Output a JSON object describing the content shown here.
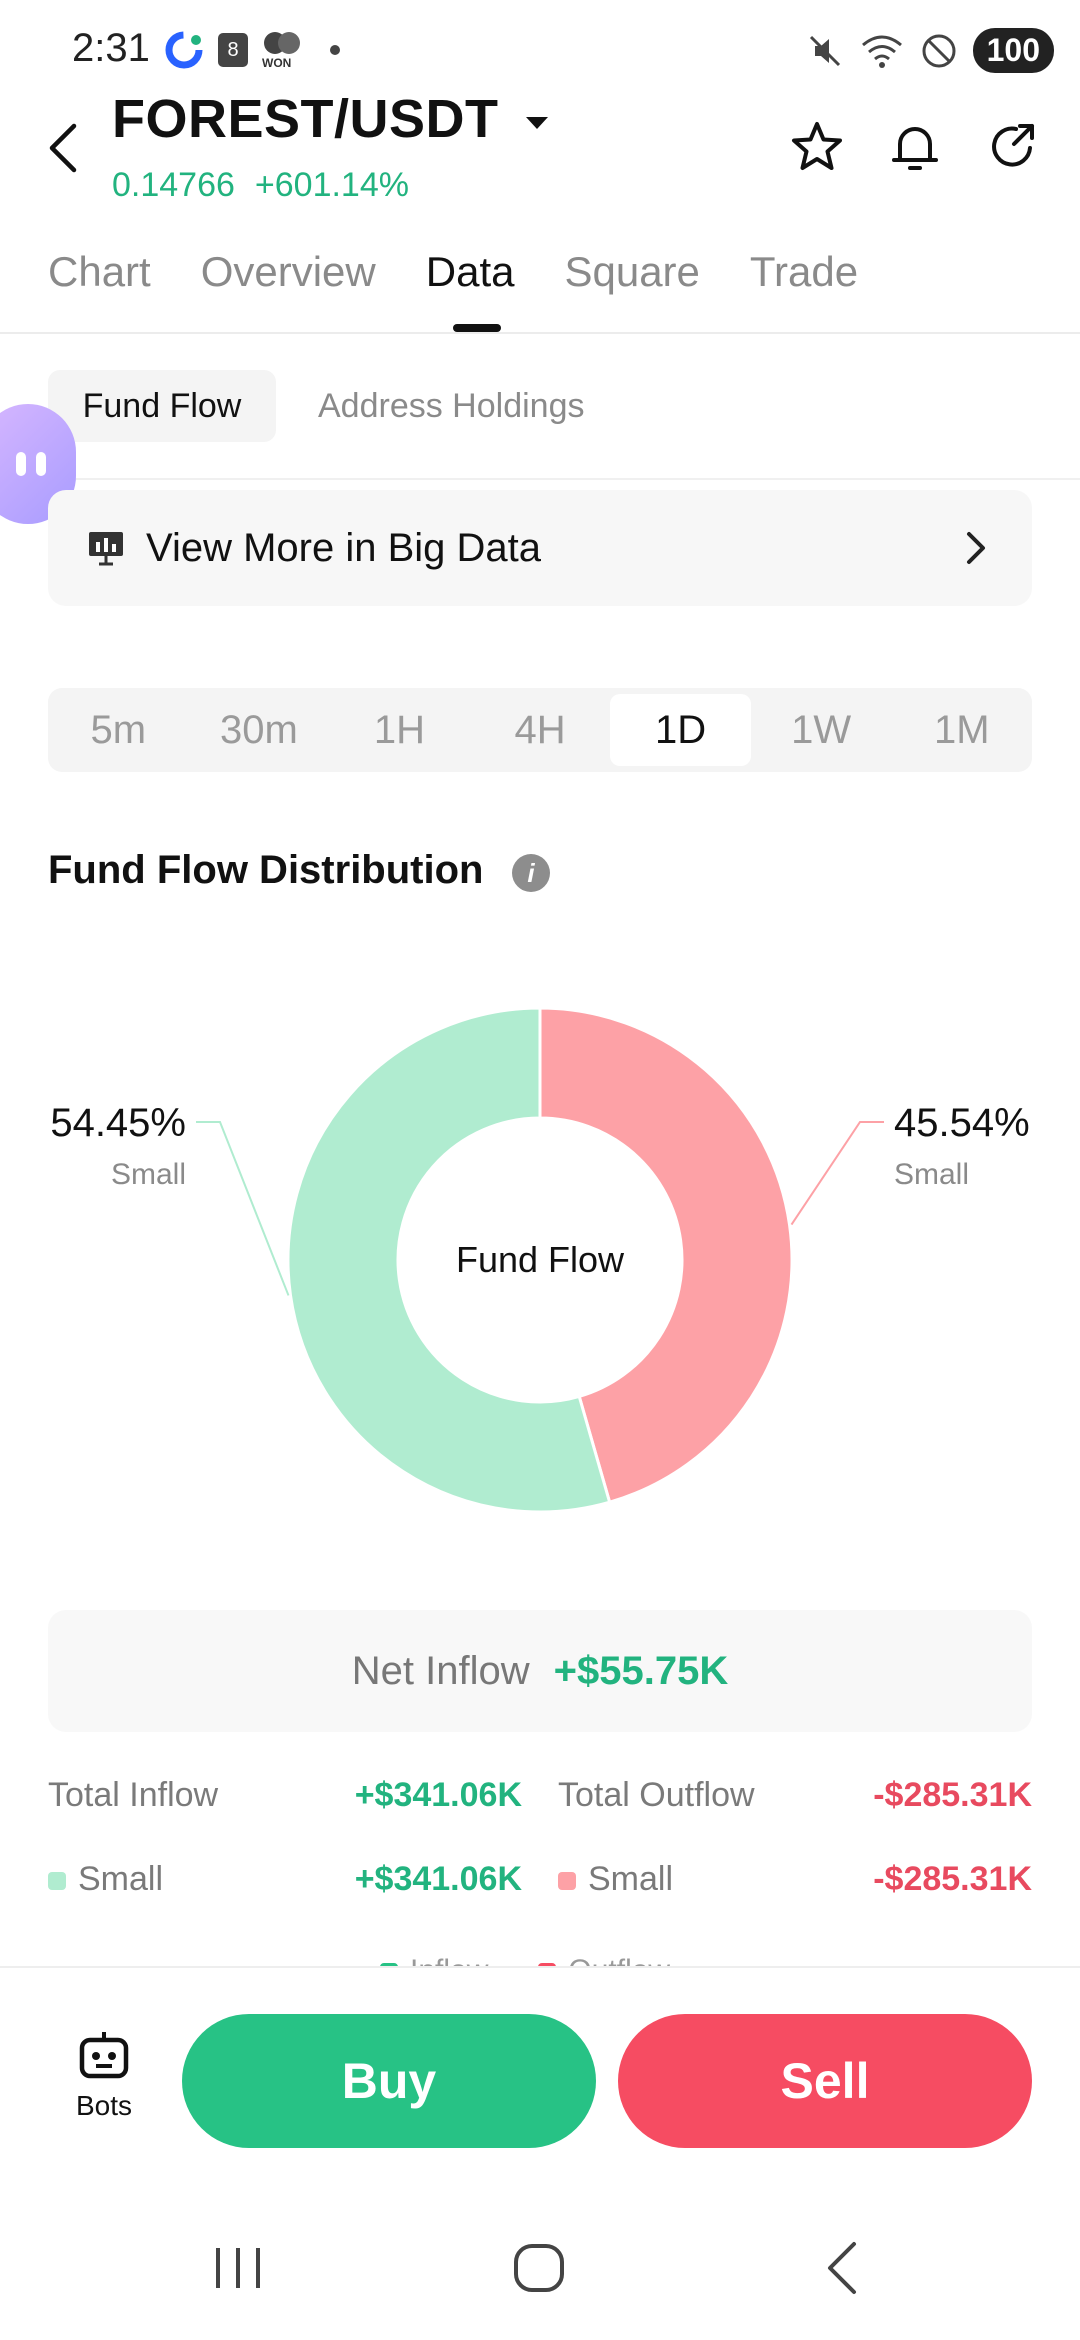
{
  "status_bar": {
    "time": "2:31",
    "calendar_badge": "8",
    "won_label": "WON",
    "battery": "100"
  },
  "header": {
    "pair": "FOREST/USDT",
    "price": "0.14766",
    "change": "+601.14%"
  },
  "tabs": [
    {
      "label": "Chart"
    },
    {
      "label": "Overview"
    },
    {
      "label": "Data"
    },
    {
      "label": "Square"
    },
    {
      "label": "Trade"
    }
  ],
  "active_tab": "Data",
  "subtabs": {
    "active": "Fund Flow",
    "other": "Address Holdings"
  },
  "big_data": {
    "label": "View More in Big Data"
  },
  "intervals": [
    "5m",
    "30m",
    "1H",
    "4H",
    "1D",
    "1W",
    "1M"
  ],
  "selected_interval": "1D",
  "section_title": "Fund Flow Distribution",
  "chart_data": {
    "type": "pie",
    "center_label": "Fund Flow",
    "slices": [
      {
        "label": "Small",
        "value": 45.54,
        "value_label": "45.54%",
        "color": "#fda1a6"
      },
      {
        "label": "Small",
        "value": 54.45,
        "value_label": "54.45%",
        "color": "#b0ecd0"
      }
    ]
  },
  "net_inflow": {
    "label": "Net Inflow",
    "value": "+$55.75K"
  },
  "totals": {
    "inflow_label": "Total Inflow",
    "inflow_value": "+$341.06K",
    "outflow_label": "Total Outflow",
    "outflow_value": "-$285.31K",
    "small_in_label": "Small",
    "small_in_value": "+$341.06K",
    "small_out_label": "Small",
    "small_out_value": "-$285.31K"
  },
  "legend_peek": {
    "inflow": "Inflow",
    "outflow": "Outflow"
  },
  "bottom": {
    "bots_label": "Bots",
    "buy_label": "Buy",
    "sell_label": "Sell"
  },
  "colors": {
    "green": "#22b37f",
    "red": "#e84a5f",
    "inflow_slice": "#b0ecd0",
    "outflow_slice": "#fda1a6"
  }
}
